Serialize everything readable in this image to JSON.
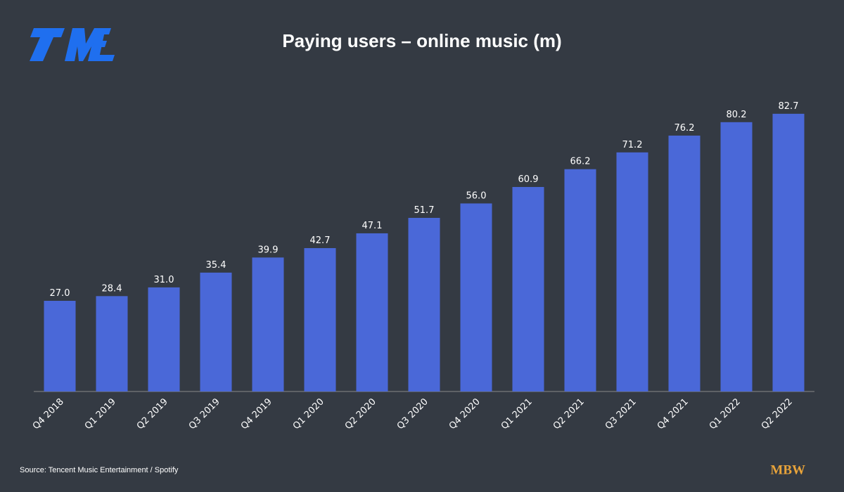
{
  "chart_data": {
    "type": "bar",
    "title": "Paying users – online music (m)",
    "categories": [
      "Q4 2018",
      "Q1 2019",
      "Q2 2019",
      "Q3 2019",
      "Q4 2019",
      "Q1 2020",
      "Q2 2020",
      "Q3 2020",
      "Q4 2020",
      "Q1 2021",
      "Q2 2021",
      "Q3 2021",
      "Q4 2021",
      "Q1 2022",
      "Q2 2022"
    ],
    "values": [
      27,
      28.4,
      31,
      35.4,
      39.9,
      42.7,
      47.1,
      51.7,
      56,
      60.9,
      66.2,
      71.2,
      76.2,
      80.2,
      82.7
    ],
    "value_labels": [
      "27.0",
      "28.4",
      "31.0",
      "35.4",
      "39.9",
      "42.7",
      "47.1",
      "51.7",
      "56.0",
      "60.9",
      "66.2",
      "71.2",
      "76.2",
      "80.2",
      "82.7"
    ],
    "color": "#4a68d8",
    "ylim": [
      0,
      90
    ],
    "grid": false,
    "source": "Source: Tencent Music Entertainment / Spotify"
  },
  "footer": {
    "logo": "MBW"
  }
}
